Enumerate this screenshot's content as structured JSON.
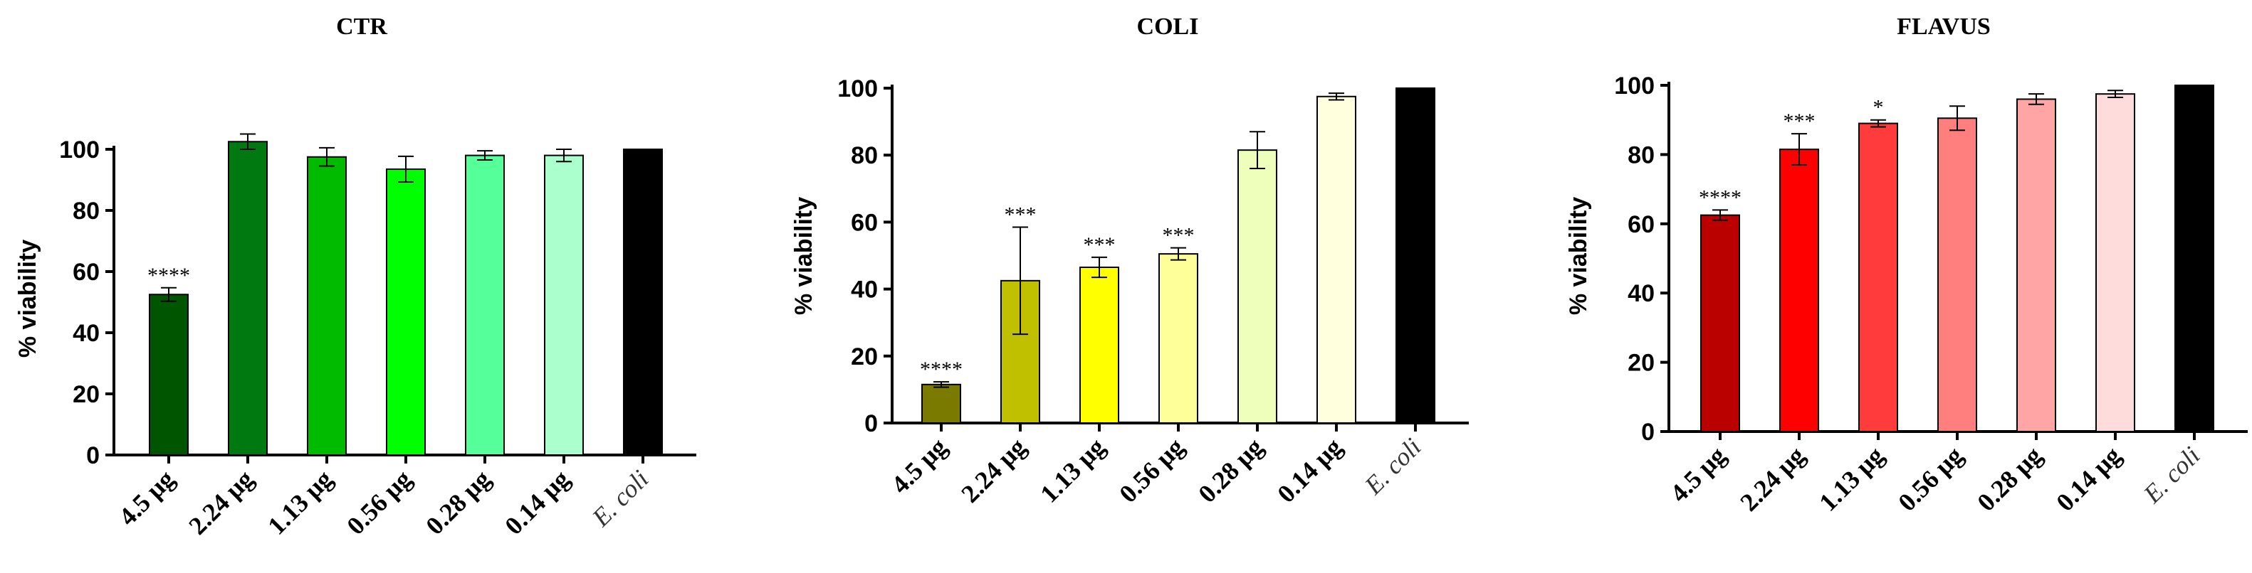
{
  "chart_data": [
    {
      "type": "bar",
      "title": "CTR",
      "ylabel": "% viability",
      "xlabel": "",
      "ylim": [
        0,
        100
      ],
      "yticks": [
        0,
        20,
        40,
        60,
        80,
        100
      ],
      "categories": [
        "4.5 μg",
        "2.24 μg",
        "1.13 μg",
        "0.56 μg",
        "0.28 μg",
        "0.14 μg",
        "E. coli"
      ],
      "values": [
        52.5,
        102.5,
        97.5,
        93.5,
        98,
        98,
        100
      ],
      "errors": [
        2.2,
        2.5,
        3.0,
        4.2,
        1.5,
        2.0,
        0
      ],
      "significance": [
        "****",
        "",
        "",
        "",
        "",
        "",
        ""
      ],
      "colors": [
        "#005500",
        "#007A10",
        "#00BB00",
        "#00FF00",
        "#55FF99",
        "#AAFFCC",
        "#000000"
      ]
    },
    {
      "type": "bar",
      "title": "COLI",
      "ylabel": "% viability",
      "xlabel": "",
      "ylim": [
        0,
        100
      ],
      "yticks": [
        0,
        20,
        40,
        60,
        80,
        100
      ],
      "categories": [
        "4.5 μg",
        "2.24 μg",
        "1.13 μg",
        "0.56 μg",
        "0.28 μg",
        "0.14 μg",
        "E. coli"
      ],
      "values": [
        11.5,
        42.5,
        46.5,
        50.5,
        81.5,
        97.5,
        100
      ],
      "errors": [
        0.8,
        16,
        3.0,
        1.8,
        5.5,
        1.0,
        0
      ],
      "significance": [
        "****",
        "***",
        "***",
        "***",
        "",
        "",
        ""
      ],
      "colors": [
        "#7A7A00",
        "#C0C000",
        "#FFFF00",
        "#FFFF99",
        "#EEFFBB",
        "#FFFFDD",
        "#000000"
      ]
    },
    {
      "type": "bar",
      "title": "FLAVUS",
      "ylabel": "% viability",
      "xlabel": "",
      "ylim": [
        0,
        100
      ],
      "yticks": [
        0,
        20,
        40,
        60,
        80,
        100
      ],
      "categories": [
        "4.5 μg",
        "2.24 μg",
        "1.13 μg",
        "0.56 μg",
        "0.28 μg",
        "0.14 μg",
        "E. coli"
      ],
      "values": [
        62.5,
        81.5,
        89,
        90.5,
        96,
        97.5,
        100
      ],
      "errors": [
        1.5,
        4.5,
        1.0,
        3.5,
        1.5,
        1.0,
        0
      ],
      "significance": [
        "****",
        "***",
        "*",
        "",
        "",
        "",
        ""
      ],
      "colors": [
        "#BB0000",
        "#FF0000",
        "#FF3B3B",
        "#FF7F7F",
        "#FFA5A5",
        "#FFDCDC",
        "#000000"
      ]
    }
  ]
}
